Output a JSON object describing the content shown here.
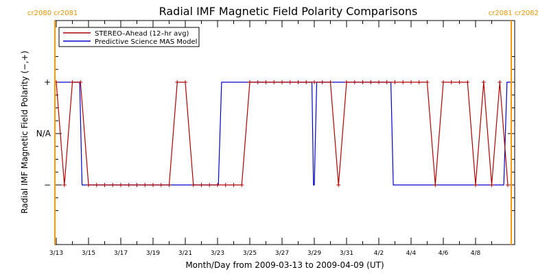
{
  "chart_data": {
    "type": "line",
    "title": "Radial IMF Magnetic Field Polarity Comparisons",
    "xlabel": "Month/Day from 2009-03-13 to 2009-04-09 (UT)",
    "ylabel": "Radial IMF Magnetic Field Polarity (−,+)",
    "xlim": [
      0,
      28.2
    ],
    "ylim": [
      -1.5,
      1.5
    ],
    "x_tick_values": [
      0,
      2,
      4,
      6,
      8,
      10,
      12,
      14,
      16,
      18,
      20,
      22,
      24,
      26
    ],
    "x_tick_labels": [
      "3/13",
      "3/15",
      "3/17",
      "3/19",
      "3/21",
      "3/23",
      "3/25",
      "3/27",
      "3/29",
      "3/31",
      "4/2",
      "4/4",
      "4/6",
      "4/8"
    ],
    "y_ticks": [
      {
        "value": 1,
        "label": "+"
      },
      {
        "value": 0,
        "label": "N/A"
      },
      {
        "value": -1,
        "label": "−"
      }
    ],
    "legend_position": "top-left",
    "rotation_markers": [
      {
        "x": 0,
        "label": "cr2080 cr2081",
        "side": "left"
      },
      {
        "x": 28.05,
        "label": "cr2081 cr2082",
        "side": "right"
      }
    ],
    "series": [
      {
        "name": "STEREO–Ahead (12–hr avg)",
        "color": "#b00000",
        "markers": "plus",
        "x": [
          0,
          0.5,
          1,
          1.5,
          2,
          2.5,
          3,
          3.5,
          4,
          4.5,
          5,
          5.5,
          6,
          6.5,
          7,
          7.5,
          8,
          8.5,
          9,
          9.5,
          10,
          10.5,
          11,
          11.5,
          12,
          12.5,
          13,
          13.5,
          14,
          14.5,
          15,
          15.5,
          16,
          16.5,
          17,
          17.5,
          18,
          18.5,
          19,
          19.5,
          20,
          20.5,
          21,
          21.5,
          22,
          22.5,
          23,
          23.5,
          24,
          24.5,
          25,
          25.5,
          26,
          26.5,
          27,
          27.5,
          28
        ],
        "values": [
          1,
          -1,
          1,
          1,
          -1,
          -1,
          -1,
          -1,
          -1,
          -1,
          -1,
          -1,
          -1,
          -1,
          -1,
          1,
          1,
          -1,
          -1,
          -1,
          -1,
          -1,
          -1,
          -1,
          1,
          1,
          1,
          1,
          1,
          1,
          1,
          1,
          1,
          1,
          1,
          -1,
          1,
          1,
          1,
          1,
          1,
          1,
          1,
          1,
          1,
          1,
          1,
          -1,
          1,
          1,
          1,
          1,
          -1,
          1,
          -1,
          1,
          -1
        ]
      },
      {
        "name": "Predictive Science MAS Model",
        "color": "#0000cc",
        "markers": "none",
        "x": [
          0,
          1.45,
          1.6,
          10.05,
          10.25,
          15.85,
          15.95,
          16.0,
          16.15,
          20.75,
          20.9,
          27.75,
          27.95,
          28.2
        ],
        "values": [
          1,
          1,
          -1,
          -1,
          1,
          1,
          -1,
          -1,
          1,
          1,
          -1,
          -1,
          1,
          1
        ]
      }
    ]
  }
}
